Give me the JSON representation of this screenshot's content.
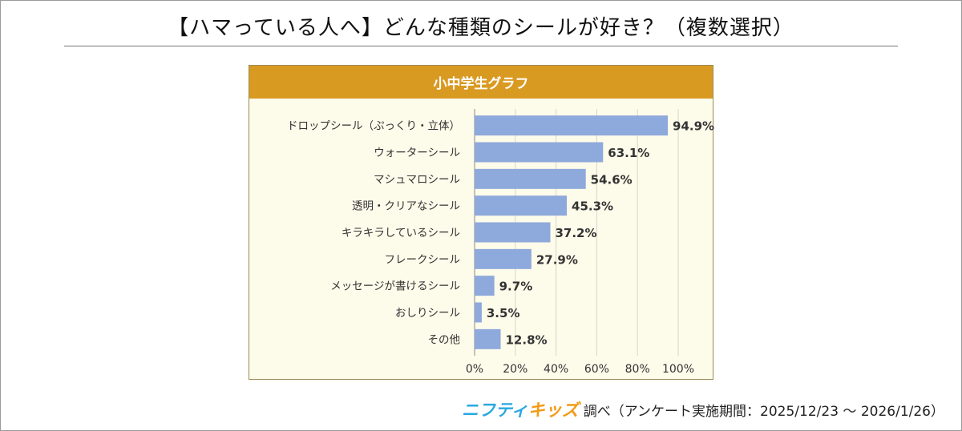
{
  "title": "【ハマっている人へ】どんな種類のシールが好き？（複数選択）",
  "footer": {
    "brand_part1": "ニフティ",
    "brand_part2": "キッズ",
    "text": "調べ（アンケート実施期間：2025/12/23 ～ 2026/1/26）"
  },
  "colors": {
    "bar": "#8ea9db",
    "header": "#d99a22",
    "plot_background": "#fdfbea",
    "grid": "#d9d6c8"
  },
  "chart_data": {
    "type": "bar",
    "orientation": "horizontal",
    "title": "小中学生グラフ",
    "categories": [
      "ドロップシール（ぷっくり・立体）",
      "ウォーターシール",
      "マシュマロシール",
      "透明・クリアなシール",
      "キラキラしているシール",
      "フレークシール",
      "メッセージが書けるシール",
      "おしりシール",
      "その他"
    ],
    "values": [
      94.9,
      63.1,
      54.6,
      45.3,
      37.2,
      27.9,
      9.7,
      3.5,
      12.8
    ],
    "value_labels": [
      "94.9%",
      "63.1%",
      "54.6%",
      "45.3%",
      "37.2%",
      "27.9%",
      "9.7%",
      "3.5%",
      "12.8%"
    ],
    "xlim": [
      0,
      100
    ],
    "xticks": [
      "0%",
      "20%",
      "40%",
      "60%",
      "80%",
      "100%"
    ],
    "grid": true
  }
}
